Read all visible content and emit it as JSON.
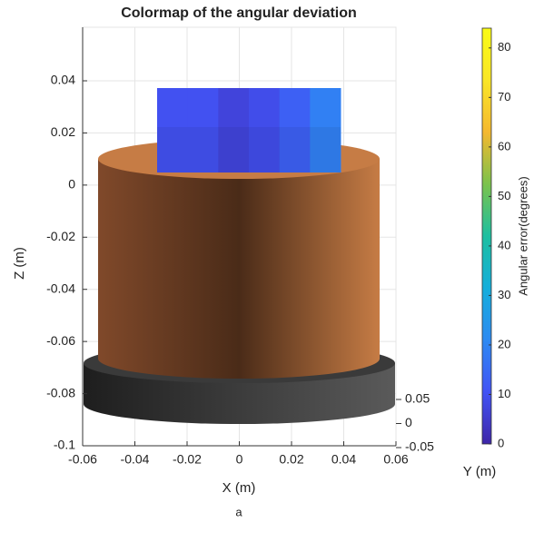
{
  "chart_data": {
    "type": "surface3d",
    "title": "Colormap of the angular deviation",
    "xlabel": "X (m)",
    "ylabel": "Y (m)",
    "zlabel": "Z (m)",
    "xlim": [
      -0.06,
      0.06
    ],
    "xticks": [
      -0.06,
      -0.04,
      -0.02,
      0,
      0.02,
      0.04,
      0.06
    ],
    "zlim": [
      -0.1,
      0.04
    ],
    "zticks": [
      -0.1,
      -0.08,
      -0.06,
      -0.04,
      -0.02,
      0,
      0.02,
      0.04
    ],
    "ylim": [
      -0.05,
      0.05
    ],
    "yticks": [
      -0.05,
      0,
      0.05
    ],
    "grid": true,
    "values": [
      10,
      10,
      7,
      9,
      13,
      19
    ],
    "colorbar": {
      "label": "Angular error(degrees)",
      "lim": [
        0,
        84
      ],
      "ticks": [
        0,
        10,
        20,
        30,
        40,
        50,
        60,
        70,
        80
      ],
      "colormap": [
        "#3e26a8",
        "#4253f5",
        "#2d8af2",
        "#15aedb",
        "#1dbfa0",
        "#7bc24c",
        "#f5b82f",
        "#f9e627",
        "#f9fb15"
      ]
    },
    "caption": "a"
  }
}
